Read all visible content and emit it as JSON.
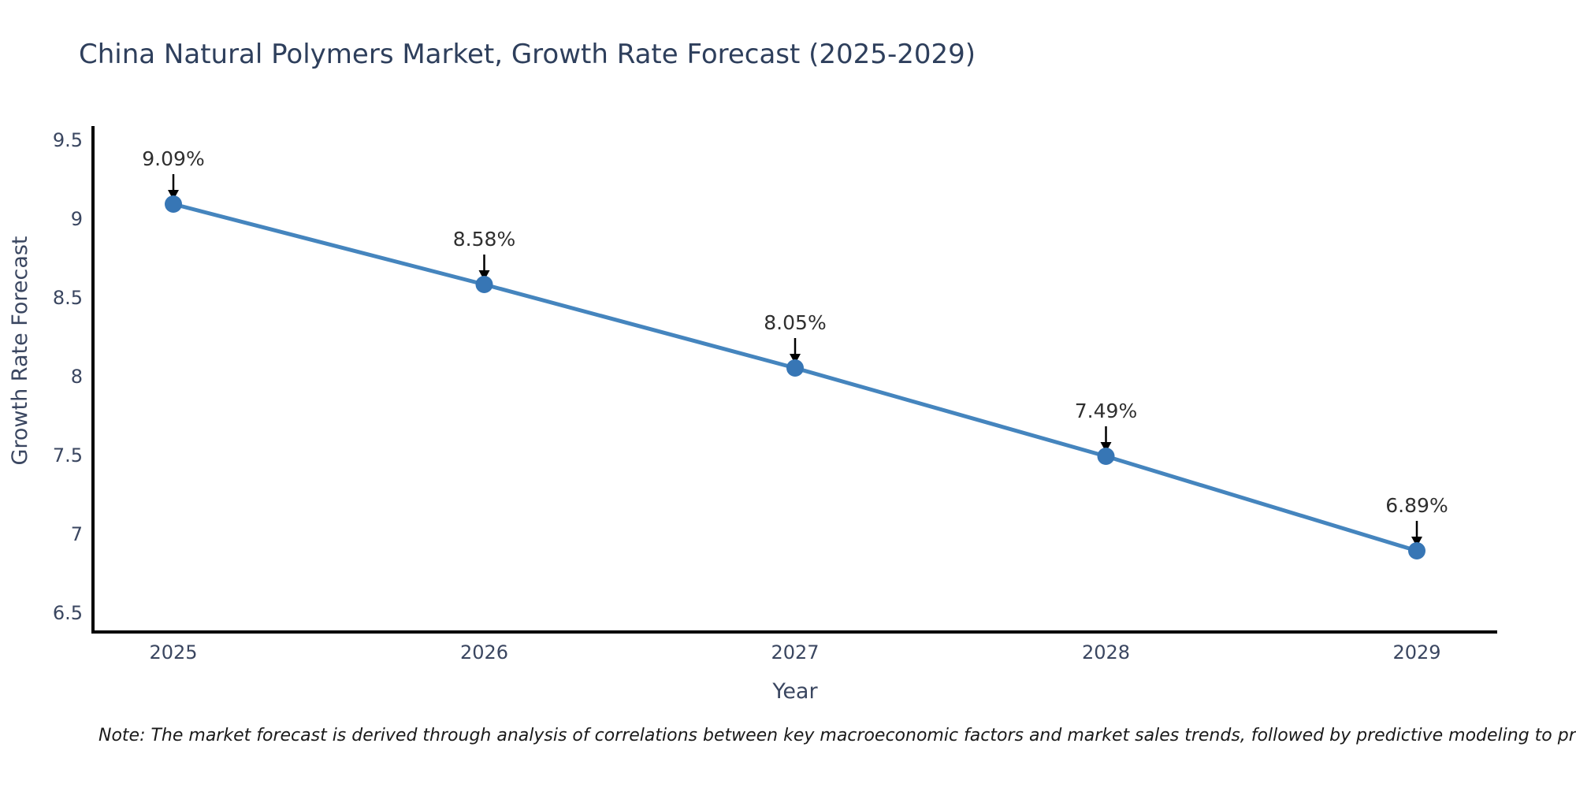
{
  "note": "Note: The market forecast is derived through analysis of correlations between key macroeconomic factors and market sales trends, followed by predictive modeling to project future sales",
  "chart_data": {
    "type": "line",
    "title": "China Natural Polymers Market, Growth Rate Forecast (2025-2029)",
    "xlabel": "Year",
    "ylabel": "Growth Rate Forecast",
    "categories": [
      2025,
      2026,
      2027,
      2028,
      2029
    ],
    "values": [
      9.09,
      8.58,
      8.05,
      7.49,
      6.89
    ],
    "point_labels": [
      "9.09%",
      "8.58%",
      "8.05%",
      "7.49%",
      "6.89%"
    ],
    "yticks": [
      6.5,
      7,
      7.5,
      8,
      8.5,
      9,
      9.5
    ],
    "ylim": [
      6.39,
      9.59
    ],
    "xlim": [
      2024.74,
      2029.26
    ],
    "grid": false,
    "legend": "none",
    "marker_style": "circle",
    "annotation_arrows": true,
    "colors": {
      "line": "#4585BE",
      "marker": "#3776B5",
      "axis": "#000000",
      "arrow": "#000000",
      "title_text": "#2e3f5c",
      "tick_text": "#3a4660",
      "annotation_text": "#2f2f2f",
      "note_text": "#1a1a1a",
      "background": "#ffffff"
    }
  }
}
